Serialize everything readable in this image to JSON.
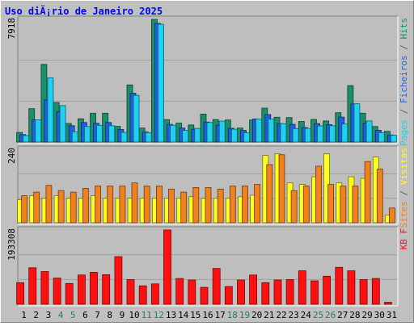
{
  "title": "Uso diÃ¡rio de Janeiro 2025",
  "colors": {
    "background": "#c0c0c0",
    "panel": "#bebebe",
    "hits": "#1a8f6a",
    "files": "#2060e0",
    "pages": "#20d0f0",
    "visits": "#ffff20",
    "sites": "#f08020",
    "kbytes": "#ff1010",
    "weekend_label": "#208060",
    "title": "#0000ff"
  },
  "chart_data": [
    {
      "type": "bar",
      "name": "hits-files-pages",
      "categories": [
        "1",
        "2",
        "3",
        "4",
        "5",
        "6",
        "7",
        "8",
        "9",
        "10",
        "11",
        "12",
        "13",
        "14",
        "15",
        "16",
        "17",
        "18",
        "19",
        "20",
        "21",
        "22",
        "23",
        "24",
        "25",
        "26",
        "27",
        "28",
        "29",
        "30",
        "31"
      ],
      "weekend_days": [
        "4",
        "5",
        "11",
        "12",
        "18",
        "19",
        "25",
        "26"
      ],
      "ymax_label": "7918",
      "ylim": [
        0,
        7918
      ],
      "right_label_parts": [
        {
          "text": "Pages",
          "color": "#20d0f0"
        },
        {
          "text": " / ",
          "color": "#606060"
        },
        {
          "text": "Ficheiros",
          "color": "#2060e0"
        },
        {
          "text": " / ",
          "color": "#606060"
        },
        {
          "text": "Hits",
          "color": "#1a8f6a"
        }
      ],
      "series": [
        {
          "name": "Hits",
          "color": "#1a8f6a",
          "values": [
            620,
            2150,
            5010,
            2550,
            1200,
            1500,
            1860,
            1860,
            1010,
            3690,
            900,
            7918,
            1450,
            1220,
            1100,
            1800,
            1450,
            1420,
            900,
            1420,
            2190,
            1600,
            1580,
            1330,
            1460,
            1360,
            1890,
            3640,
            1860,
            1000,
            690
          ]
        },
        {
          "name": "Ficheiros",
          "color": "#2060e0",
          "values": [
            480,
            1440,
            2720,
            1960,
            1050,
            1260,
            1210,
            1260,
            810,
            3150,
            650,
            7660,
            1140,
            900,
            820,
            1290,
            1090,
            890,
            750,
            1490,
            1770,
            1190,
            1140,
            930,
            1190,
            1120,
            1610,
            2450,
            1220,
            760,
            460
          ]
        },
        {
          "name": "Pages",
          "color": "#20d0f0",
          "values": [
            420,
            1440,
            4140,
            2350,
            660,
            1000,
            1080,
            1050,
            620,
            3010,
            610,
            7600,
            1080,
            750,
            880,
            1260,
            1350,
            830,
            600,
            1490,
            1480,
            1190,
            870,
            880,
            1040,
            1050,
            1160,
            2470,
            1360,
            610,
            440
          ]
        }
      ]
    },
    {
      "type": "bar",
      "name": "visits-sites",
      "categories": [
        "1",
        "2",
        "3",
        "4",
        "5",
        "6",
        "7",
        "8",
        "9",
        "10",
        "11",
        "12",
        "13",
        "14",
        "15",
        "16",
        "17",
        "18",
        "19",
        "20",
        "21",
        "22",
        "23",
        "24",
        "25",
        "26",
        "27",
        "28",
        "29",
        "30",
        "31"
      ],
      "ymax_label": "240",
      "ylim": [
        0,
        240
      ],
      "right_label_parts": [
        {
          "text": "Sites",
          "color": "#f08020"
        },
        {
          "text": " / ",
          "color": "#606060"
        },
        {
          "text": "Visitas",
          "color": "#ffff20"
        }
      ],
      "series": [
        {
          "name": "Visitas",
          "color": "#ffff20",
          "values": [
            75,
            88,
            80,
            88,
            80,
            80,
            88,
            80,
            80,
            80,
            80,
            80,
            80,
            80,
            85,
            80,
            80,
            80,
            85,
            90,
            220,
            225,
            130,
            125,
            150,
            225,
            130,
            150,
            145,
            215,
            25
          ]
        },
        {
          "name": "Sites",
          "color": "#f08020",
          "values": [
            88,
            100,
            122,
            105,
            100,
            112,
            120,
            120,
            120,
            130,
            120,
            120,
            110,
            100,
            115,
            115,
            110,
            120,
            120,
            125,
            190,
            222,
            105,
            120,
            185,
            125,
            120,
            120,
            200,
            175,
            48
          ]
        }
      ]
    },
    {
      "type": "bar",
      "name": "kbytes",
      "categories": [
        "1",
        "2",
        "3",
        "4",
        "5",
        "6",
        "7",
        "8",
        "9",
        "10",
        "11",
        "12",
        "13",
        "14",
        "15",
        "16",
        "17",
        "18",
        "19",
        "20",
        "21",
        "22",
        "23",
        "24",
        "25",
        "26",
        "27",
        "28",
        "29",
        "30",
        "31"
      ],
      "ymax_label": "193308",
      "ylim": [
        0,
        193308
      ],
      "right_label_parts": [
        {
          "text": "KB F",
          "color": "#ff1010"
        }
      ],
      "series": [
        {
          "name": "KB F",
          "color": "#ff1010",
          "values": [
            56000,
            95000,
            85000,
            68000,
            54000,
            76000,
            83000,
            77000,
            124000,
            64000,
            48000,
            53000,
            193308,
            67000,
            63000,
            44000,
            93000,
            46000,
            63000,
            76000,
            56000,
            63000,
            64000,
            87000,
            61000,
            73000,
            96000,
            87000,
            64000,
            67000,
            5000
          ]
        }
      ]
    }
  ]
}
